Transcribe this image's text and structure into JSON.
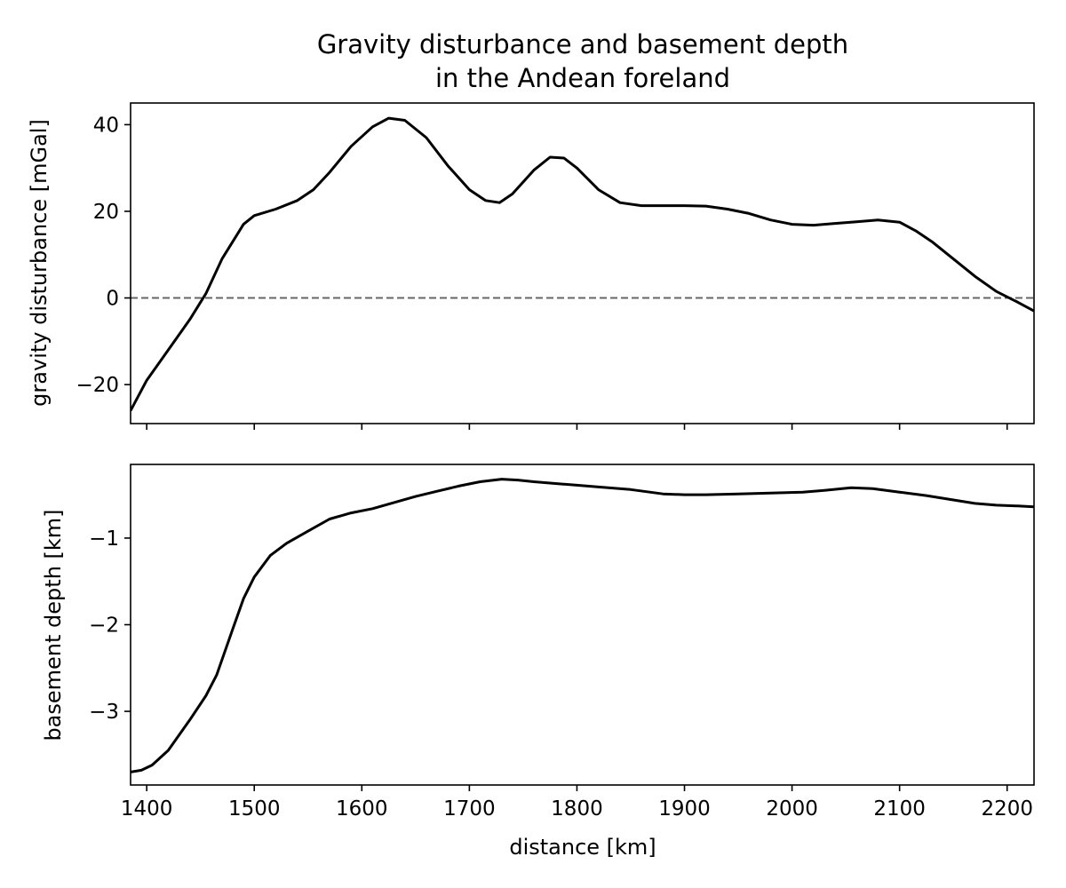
{
  "figure": {
    "title_line1": "Gravity disturbance and basement depth",
    "title_line2": "in the Andean foreland"
  },
  "chart_data": [
    {
      "type": "line",
      "ylabel": "gravity disturbance [mGal]",
      "xlabel": "",
      "xlim": [
        1385,
        2225
      ],
      "ylim": [
        -29,
        45
      ],
      "x_ticks": [
        1400,
        1500,
        1600,
        1700,
        1800,
        1900,
        2000,
        2100,
        2200
      ],
      "x_tick_labels_visible": false,
      "y_ticks": [
        -20,
        0,
        20,
        40
      ],
      "y_tick_labels": [
        "−20",
        "0",
        "20",
        "40"
      ],
      "grid": false,
      "reference_line": {
        "y": 0,
        "style": "dashed",
        "color": "#666666"
      },
      "series": [
        {
          "color": "#000000",
          "x": [
            1385,
            1400,
            1420,
            1440,
            1455,
            1470,
            1490,
            1500,
            1520,
            1540,
            1555,
            1570,
            1590,
            1610,
            1625,
            1640,
            1660,
            1680,
            1700,
            1715,
            1728,
            1740,
            1760,
            1775,
            1788,
            1800,
            1820,
            1840,
            1860,
            1880,
            1900,
            1920,
            1940,
            1960,
            1980,
            2000,
            2020,
            2040,
            2060,
            2080,
            2100,
            2115,
            2130,
            2150,
            2170,
            2190,
            2210,
            2225
          ],
          "y": [
            -26,
            -19,
            -12,
            -5,
            1,
            9,
            17,
            19,
            20.5,
            22.5,
            25,
            29,
            35,
            39.5,
            41.5,
            41,
            37,
            30.5,
            25,
            22.5,
            22,
            24,
            29.5,
            32.5,
            32.3,
            30,
            25,
            22,
            21.3,
            21.3,
            21.3,
            21.2,
            20.5,
            19.5,
            18,
            17,
            16.8,
            17.2,
            17.6,
            18,
            17.5,
            15.5,
            13,
            9,
            5,
            1.5,
            -1,
            -3
          ]
        }
      ]
    },
    {
      "type": "line",
      "ylabel": "basement depth [km]",
      "xlabel": "distance [km]",
      "xlim": [
        1385,
        2225
      ],
      "ylim": [
        -3.85,
        -0.15
      ],
      "x_ticks": [
        1400,
        1500,
        1600,
        1700,
        1800,
        1900,
        2000,
        2100,
        2200
      ],
      "x_tick_labels": [
        "1400",
        "1500",
        "1600",
        "1700",
        "1800",
        "1900",
        "2000",
        "2100",
        "2200"
      ],
      "y_ticks": [
        -3,
        -2,
        -1
      ],
      "y_tick_labels": [
        "−3",
        "−2",
        "−1"
      ],
      "grid": false,
      "series": [
        {
          "color": "#000000",
          "x": [
            1385,
            1395,
            1405,
            1420,
            1440,
            1455,
            1465,
            1480,
            1490,
            1500,
            1515,
            1530,
            1550,
            1570,
            1590,
            1610,
            1630,
            1650,
            1670,
            1690,
            1710,
            1730,
            1745,
            1760,
            1780,
            1800,
            1820,
            1850,
            1880,
            1900,
            1920,
            1950,
            1980,
            2010,
            2030,
            2055,
            2075,
            2100,
            2125,
            2150,
            2170,
            2190,
            2210,
            2225
          ],
          "y": [
            -3.7,
            -3.68,
            -3.62,
            -3.45,
            -3.1,
            -2.82,
            -2.58,
            -2.05,
            -1.7,
            -1.45,
            -1.2,
            -1.06,
            -0.92,
            -0.78,
            -0.71,
            -0.66,
            -0.59,
            -0.52,
            -0.46,
            -0.4,
            -0.35,
            -0.32,
            -0.33,
            -0.35,
            -0.37,
            -0.39,
            -0.41,
            -0.44,
            -0.49,
            -0.5,
            -0.5,
            -0.49,
            -0.48,
            -0.47,
            -0.45,
            -0.42,
            -0.43,
            -0.47,
            -0.51,
            -0.56,
            -0.6,
            -0.62,
            -0.63,
            -0.64
          ]
        }
      ]
    }
  ]
}
